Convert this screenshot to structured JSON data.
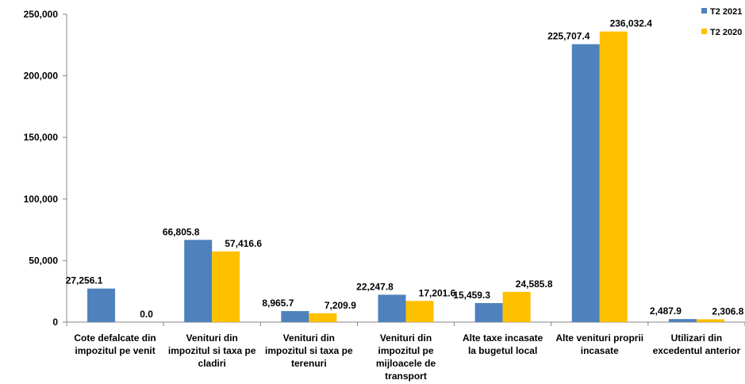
{
  "chart_data": {
    "type": "bar",
    "categories": [
      [
        "Cote defalcate din",
        "impozitul pe venit"
      ],
      [
        "Venituri din",
        "impozitul si taxa pe",
        "cladiri"
      ],
      [
        "Venituri din",
        "impozitul si taxa pe",
        "terenuri"
      ],
      [
        "Venituri din",
        "impozitul pe",
        "mijloacele de",
        "transport"
      ],
      [
        "Alte taxe incasate",
        "la bugetul local"
      ],
      [
        "Alte venituri proprii",
        "incasate"
      ],
      [
        "Utilizari din",
        "excedentul anterior"
      ]
    ],
    "series": [
      {
        "name": "T2 2021",
        "color": "#4F81BD",
        "values": [
          27256.1,
          66805.8,
          8965.7,
          22247.8,
          15459.3,
          225707.4,
          2487.9
        ],
        "labels": [
          "27,256.1",
          "66,805.8",
          "8,965.7",
          "22,247.8",
          "15,459.3",
          "225,707.4",
          "2,487.9"
        ]
      },
      {
        "name": "T2 2020",
        "color": "#FFC000",
        "values": [
          0,
          57416.6,
          7209.9,
          17201.6,
          24585.8,
          236032.4,
          2306.8
        ],
        "labels": [
          "0.0",
          "57,416.6",
          "7,209.9",
          "17,201.6",
          "24,585.8",
          "236,032.4",
          "2,306.8"
        ]
      }
    ],
    "ylim": [
      0,
      250000
    ],
    "yticks": [
      "0",
      "50,000",
      "100,000",
      "150,000",
      "200,000",
      "250,000"
    ],
    "grid": false,
    "legend_position": "top-right",
    "title": "",
    "xlabel": "",
    "ylabel": ""
  }
}
